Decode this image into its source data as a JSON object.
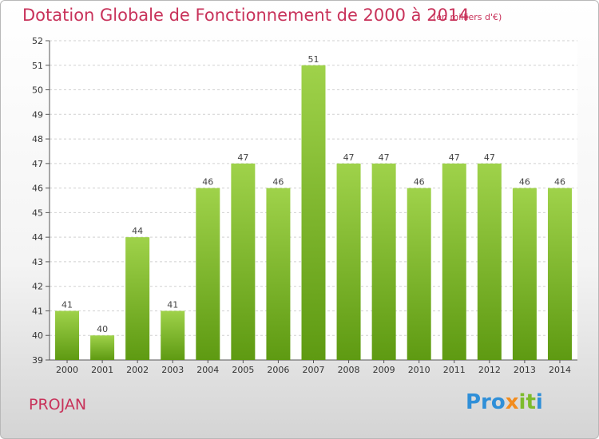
{
  "header": {
    "title": "Dotation Globale de Fonctionnement de 2000 à 2014",
    "unit": "(en milliers d'€)"
  },
  "footer": {
    "commune": "PROJAN",
    "logo": {
      "p1": "Pro",
      "p2": "x",
      "p3": "it",
      "p4": "i"
    }
  },
  "colors": {
    "title": "#c8325a",
    "bar_top": "#9fd24a",
    "bar_bottom": "#5e9a12"
  },
  "chart_data": {
    "type": "bar",
    "categories": [
      "2000",
      "2001",
      "2002",
      "2003",
      "2004",
      "2005",
      "2006",
      "2007",
      "2008",
      "2009",
      "2010",
      "2011",
      "2012",
      "2013",
      "2014"
    ],
    "values": [
      41,
      40,
      44,
      41,
      46,
      47,
      46,
      51,
      47,
      47,
      46,
      47,
      47,
      46,
      46
    ],
    "title": "Dotation Globale de Fonctionnement de 2000 à 2014",
    "xlabel": "",
    "ylabel": "",
    "ylim": [
      39,
      52
    ],
    "yticks": [
      39,
      40,
      41,
      42,
      43,
      44,
      45,
      46,
      47,
      48,
      49,
      50,
      51,
      52
    ],
    "grid": true
  }
}
